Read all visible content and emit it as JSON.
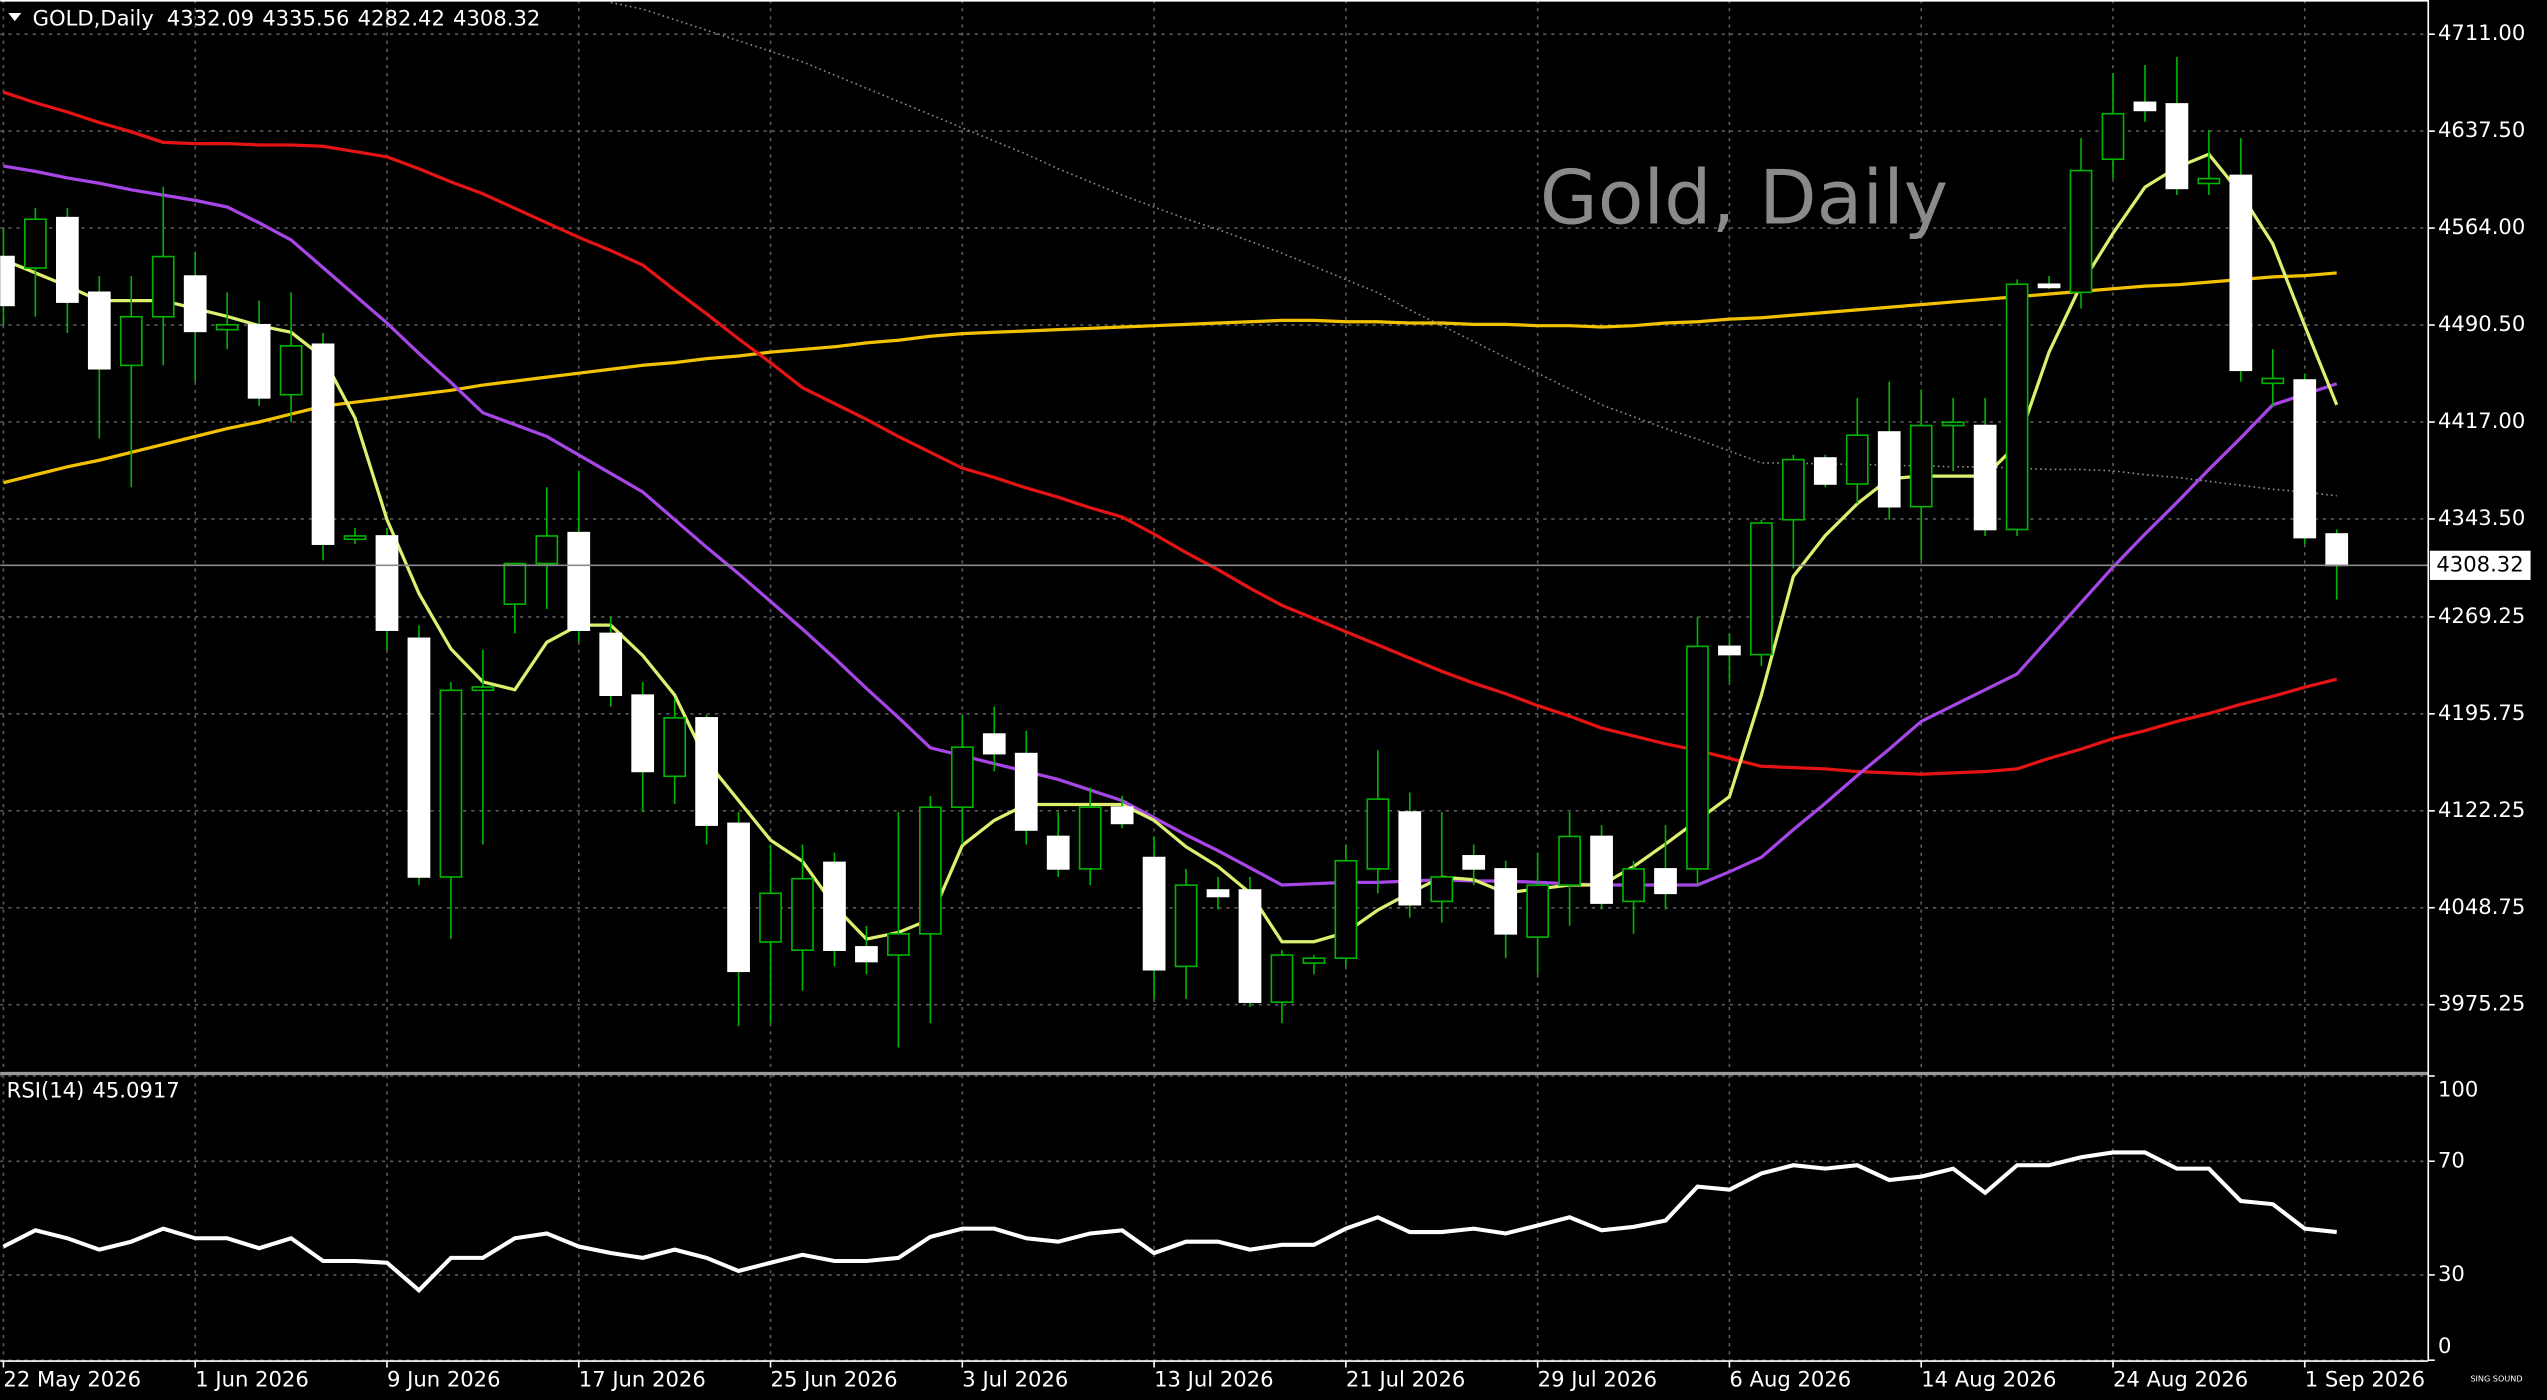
{
  "chart_data": [
    {
      "type": "candlestick",
      "symbol": "GOLD,Daily",
      "title": "Gold, Daily",
      "logo": "SING SOUND",
      "categories": [
        "22 May 2026",
        null,
        null,
        null,
        null,
        null,
        "1 Jun 2026",
        null,
        null,
        null,
        null,
        null,
        "9 Jun 2026",
        null,
        null,
        null,
        null,
        null,
        "17 Jun 2026",
        null,
        null,
        null,
        null,
        null,
        "25 Jun 2026",
        null,
        null,
        null,
        null,
        null,
        "3 Jul 2026",
        null,
        null,
        null,
        null,
        null,
        "13 Jul 2026",
        null,
        null,
        null,
        null,
        null,
        "21 Jul 2026",
        null,
        null,
        null,
        null,
        null,
        "29 Jul 2026",
        null,
        null,
        null,
        null,
        null,
        "6 Aug 2026",
        null,
        null,
        null,
        null,
        null,
        "14 Aug 2026",
        null,
        null,
        null,
        null,
        null,
        "24 Aug 2026",
        null,
        null,
        null,
        null,
        null,
        "1 Sep 2026",
        null
      ],
      "open": [
        4542.4,
        4533.7,
        4571.9,
        4515.3,
        4459.9,
        4496.8,
        4527.6,
        4487.0,
        4490.7,
        4437.7,
        4475.9,
        4328.1,
        4330.6,
        4253.0,
        4072.1,
        4213.6,
        4278.9,
        4309.7,
        4333.1,
        4256.7,
        4209.9,
        4148.4,
        4192.7,
        4112.7,
        4022.8,
        4016.6,
        4083.1,
        4019.1,
        4012.9,
        4029.0,
        4125.0,
        4180.4,
        4165.6,
        4102.8,
        4078.2,
        4125.0,
        4086.8,
        4004.3,
        4062.2,
        4062.2,
        3977.2,
        4006.8,
        4010.5,
        4078.2,
        4121.3,
        4053.6,
        4088.1,
        4078.2,
        4026.5,
        4065.9,
        4102.8,
        4053.6,
        4078.2,
        4078.2,
        4246.9,
        4240.7,
        4342.9,
        4389.7,
        4370.0,
        4409.4,
        4352.8,
        4414.3,
        4414.3,
        4335.5,
        4521.4,
        4515.3,
        4616.2,
        4659.3,
        4658.1,
        4597.8,
        4603.9,
        4446.3,
        4448.8,
        4332.09
      ],
      "high": [
        4564.5,
        4579.3,
        4579.3,
        4527.6,
        4527.6,
        4595.3,
        4546.1,
        4515.3,
        4509.1,
        4515.3,
        4484.5,
        4336.7,
        4336.7,
        4262.9,
        4219.8,
        4244.4,
        4306.0,
        4367.5,
        4379.9,
        4269.1,
        4219.8,
        4207.5,
        4195.2,
        4121.3,
        4096.7,
        4096.7,
        4090.5,
        4035.1,
        4121.3,
        4133.6,
        4195.2,
        4201.3,
        4182.8,
        4121.3,
        4139.8,
        4133.6,
        4102.8,
        4078.2,
        4072.1,
        4072.1,
        4016.6,
        4012.9,
        4096.7,
        4168.1,
        4136.1,
        4121.3,
        4096.7,
        4084.4,
        4090.5,
        4121.3,
        4111.4,
        4084.4,
        4111.4,
        4269.1,
        4256.7,
        4342.9,
        4392.1,
        4392.1,
        4435.3,
        4447.6,
        4441.4,
        4435.3,
        4435.3,
        4525.1,
        4527.6,
        4632.2,
        4681.5,
        4687.6,
        4693.8,
        4638.4,
        4632.2,
        4472.2,
        4453.7,
        4335.56
      ],
      "low": [
        4490.5,
        4496.8,
        4484.5,
        4404.5,
        4367.5,
        4459.9,
        4447.6,
        4472.2,
        4429.1,
        4416.8,
        4312.1,
        4324.4,
        4244.4,
        4065.9,
        4025.3,
        4096.7,
        4256.7,
        4275.2,
        4250.6,
        4201.3,
        4121.3,
        4127.5,
        4096.7,
        3958.8,
        3961.2,
        3985.9,
        4004.3,
        3998.2,
        3942.8,
        3961.2,
        4096.7,
        4152.1,
        4096.7,
        4072.1,
        4065.9,
        4109.0,
        3979.7,
        3979.7,
        4047.4,
        3973.5,
        3961.2,
        3998.2,
        4004.3,
        4059.7,
        4041.3,
        4037.6,
        4065.9,
        4010.5,
        3998.2,
        4035.1,
        4047.4,
        4029.0,
        4047.4,
        4065.9,
        4219.8,
        4232.1,
        4306.0,
        4367.5,
        4355.2,
        4342.9,
        4312.1,
        4379.9,
        4330.6,
        4330.6,
        4517.7,
        4503.0,
        4601.5,
        4644.5,
        4589.1,
        4589.1,
        4447.6,
        4429.1,
        4324.4,
        4282.42
      ],
      "close": [
        4505.4,
        4570.7,
        4507.9,
        4457.4,
        4496.8,
        4542.4,
        4485.7,
        4490.7,
        4435.3,
        4474.7,
        4324.4,
        4330.6,
        4259.2,
        4072.1,
        4213.6,
        4216.1,
        4309.7,
        4330.6,
        4259.2,
        4209.9,
        4152.1,
        4192.7,
        4111.4,
        4000.6,
        4059.7,
        4070.8,
        4016.6,
        4008.0,
        4029.0,
        4125.0,
        4170.5,
        4165.6,
        4107.7,
        4078.2,
        4125.0,
        4112.7,
        4001.8,
        4065.9,
        4057.3,
        3977.2,
        4012.9,
        4010.5,
        4084.4,
        4131.1,
        4051.1,
        4072.1,
        4078.2,
        4029.0,
        4065.9,
        4102.8,
        4052.3,
        4078.2,
        4059.7,
        4246.9,
        4240.7,
        4340.4,
        4388.5,
        4370.0,
        4407.0,
        4352.8,
        4414.3,
        4416.8,
        4335.5,
        4521.4,
        4519.0,
        4607.6,
        4650.7,
        4653.2,
        4594.1,
        4601.5,
        4456.2,
        4450.0,
        4329.4,
        4308.32
      ],
      "up_color": "#000000",
      "down_color": "#ffffff",
      "wick_color": "#00b400",
      "series": [
        {
          "color": "#f2c200",
          "values": [
            4371,
            4377,
            4383,
            4388,
            4394,
            4400,
            4406,
            4412,
            4417,
            4423,
            4429,
            4432,
            4435,
            4438,
            4441,
            4445,
            4448,
            4451,
            4454,
            4457,
            4460,
            4462,
            4465,
            4467,
            4470,
            4472,
            4474,
            4477,
            4479,
            4482,
            4484,
            4485,
            4486,
            4487,
            4488,
            4489,
            4490,
            4491,
            4492,
            4493,
            4494,
            4494,
            4493,
            4493,
            4492,
            4492,
            4491,
            4491,
            4490,
            4490,
            4489,
            4490,
            4492,
            4493,
            4495,
            4496,
            4498,
            4500,
            4502,
            4504,
            4506,
            4508,
            4510,
            4512,
            4514,
            4516,
            4518,
            4520,
            4521,
            4523,
            4525,
            4527,
            4528,
            4530
          ]
        },
        {
          "color": "#e41414",
          "values": [
            4667,
            4659,
            4652,
            4644,
            4637,
            4629,
            4628,
            4628,
            4627,
            4627,
            4626,
            4622,
            4618,
            4609,
            4599,
            4590,
            4579,
            4568,
            4557,
            4547,
            4536,
            4517,
            4499,
            4480,
            4462,
            4443,
            4431,
            4419,
            4406,
            4394,
            4382,
            4375,
            4367,
            4360,
            4352,
            4345,
            4332,
            4318,
            4305,
            4291,
            4278,
            4268,
            4258,
            4248,
            4238,
            4228,
            4219,
            4211,
            4202,
            4194,
            4185,
            4179,
            4173,
            4168,
            4162,
            4156,
            4155,
            4154,
            4152,
            4151,
            4150,
            4151,
            4152,
            4154,
            4162,
            4169,
            4177,
            4183,
            4190,
            4196,
            4203,
            4209,
            4216,
            4222
          ]
        },
        {
          "color": "#a646e6",
          "values": [
            4611,
            4607,
            4602,
            4598,
            4593,
            4589,
            4585,
            4580,
            4568,
            4555,
            4534,
            4513,
            4492,
            4469,
            4447,
            4424,
            4415,
            4406,
            4392,
            4378,
            4364,
            4343,
            4322,
            4302,
            4281,
            4260,
            4238,
            4215,
            4193,
            4170,
            4164,
            4158,
            4152,
            4146,
            4138,
            4130,
            4117,
            4104,
            4092,
            4079,
            4066,
            4067,
            4068,
            4068,
            4069,
            4070,
            4069,
            4069,
            4068,
            4067,
            4066,
            4066,
            4066,
            4066,
            4076,
            4087,
            4108,
            4128,
            4149,
            4169,
            4190,
            4202,
            4214,
            4226,
            4253,
            4280,
            4307,
            4332,
            4356,
            4381,
            4405,
            4430,
            4438,
            4446
          ]
        },
        {
          "color": "#dcef6e",
          "values": [
            4540,
            4530,
            4520,
            4509,
            4509,
            4509,
            4503,
            4497,
            4490,
            4485,
            4466,
            4420,
            4343,
            4287,
            4245,
            4220,
            4214,
            4250,
            4263,
            4263,
            4240,
            4210,
            4160,
            4130,
            4100,
            4084,
            4050,
            4025,
            4030,
            4040,
            4096,
            4115,
            4127,
            4127,
            4127,
            4127,
            4115,
            4095,
            4080,
            4060,
            4023,
            4023,
            4030,
            4047,
            4060,
            4072,
            4070,
            4060,
            4063,
            4066,
            4066,
            4080,
            4097,
            4115,
            4133,
            4210,
            4300,
            4331,
            4355,
            4374,
            4376,
            4376,
            4376,
            4400,
            4470,
            4521,
            4560,
            4595,
            4610,
            4620,
            4590,
            4552,
            4490,
            4430
          ]
        },
        {
          "color": "#8c8c8c",
          "style": "dotted",
          "values": [
            null,
            null,
            null,
            null,
            null,
            null,
            null,
            null,
            null,
            null,
            null,
            null,
            null,
            null,
            null,
            null,
            null,
            null,
            null,
            4735,
            4730,
            4722,
            4714,
            4706,
            4698,
            4690,
            4680,
            4670,
            4660,
            4650,
            4640,
            4630,
            4620,
            4609,
            4599,
            4589,
            4580,
            4571,
            4563,
            4554,
            4545,
            4535,
            4525,
            4515,
            4502,
            4490,
            4478,
            4466,
            4454,
            4442,
            4430,
            4421,
            4412,
            4404,
            4395,
            4386,
            4386,
            4385,
            4385,
            4384,
            4384,
            4383,
            4383,
            4382,
            4381,
            4381,
            4380,
            4377,
            4375,
            4372,
            4369,
            4366,
            4364,
            4361
          ]
        }
      ],
      "ylim": [
        3924.3,
        4736.9
      ],
      "yticks": [
        {
          "value": 4711,
          "label": "4711.00"
        },
        {
          "value": 4637.5,
          "label": "4637.50"
        },
        {
          "value": 4564,
          "label": "4564.00"
        },
        {
          "value": 4490.5,
          "label": "4490.50"
        },
        {
          "value": 4417,
          "label": "4417.00"
        },
        {
          "value": 4343.5,
          "label": "4343.50"
        },
        {
          "value": 4269.25,
          "label": "4269.25"
        },
        {
          "value": 4195.75,
          "label": "4195.75"
        },
        {
          "value": 4122.25,
          "label": "4122.25"
        },
        {
          "value": 4048.75,
          "label": "4048.75"
        },
        {
          "value": 3975.25,
          "label": "3975.25"
        }
      ],
      "grid": true
    },
    {
      "type": "line",
      "title": "RSI(14)",
      "color": "#ffffff",
      "values": [
        40,
        45.7,
        42.9,
        38.9,
        41.7,
        46.3,
        42.9,
        42.9,
        39.4,
        42.9,
        34.9,
        34.9,
        34.3,
        24.6,
        36,
        36,
        42.9,
        44.6,
        40,
        37.7,
        36,
        38.9,
        36,
        31.4,
        34.3,
        37.1,
        34.9,
        34.9,
        36,
        43.4,
        46.3,
        46.3,
        42.9,
        41.7,
        44.6,
        45.7,
        37.7,
        41.7,
        41.7,
        38.9,
        40.6,
        40.6,
        46.3,
        50.3,
        45.1,
        45.1,
        46.3,
        44.6,
        47.4,
        50.3,
        45.7,
        46.9,
        49.1,
        61.1,
        60,
        65.7,
        68.6,
        67.4,
        68.6,
        63.4,
        64.6,
        67.4,
        58.9,
        68.6,
        68.6,
        71.4,
        73.1,
        73.1,
        67.4,
        67.4,
        56,
        54.9,
        46.3,
        45.0917
      ],
      "ylim": [
        0,
        100
      ],
      "yticks": [
        100,
        70,
        30,
        0
      ],
      "grid": true
    }
  ]
}
